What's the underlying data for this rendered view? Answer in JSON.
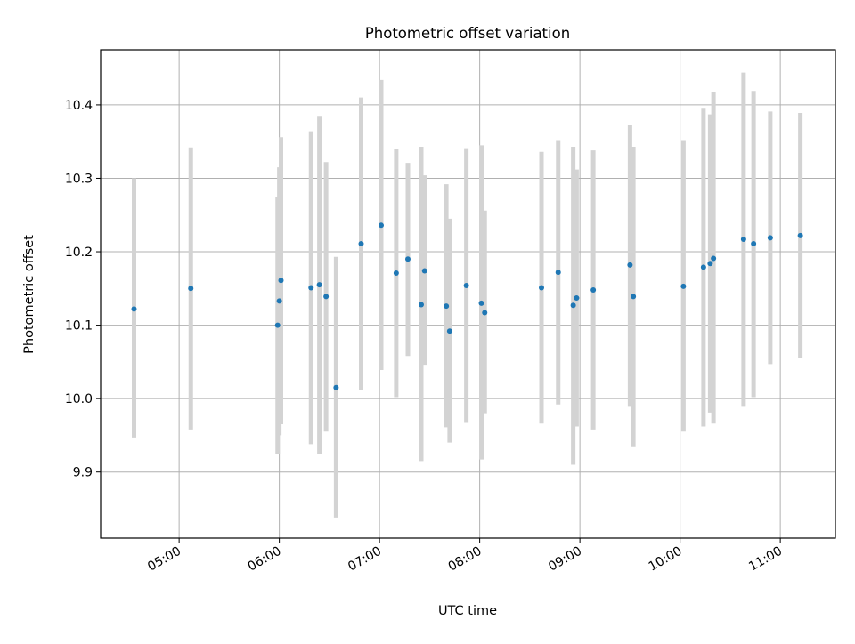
{
  "chart_data": {
    "type": "scatter",
    "title": "Photometric offset variation",
    "xlabel": "UTC time",
    "ylabel": "Photometric offset",
    "xlim": [
      "04:13",
      "11:33"
    ],
    "ylim": [
      9.81,
      10.475
    ],
    "grid": true,
    "colors": {
      "point": "#1f77b4",
      "errorbar": "#d3d3d3",
      "grid": "#b0b0b0",
      "frame": "#000000"
    },
    "x_ticks": [
      {
        "time": "05:00",
        "label": "05:00"
      },
      {
        "time": "06:00",
        "label": "06:00"
      },
      {
        "time": "07:00",
        "label": "07:00"
      },
      {
        "time": "08:00",
        "label": "08:00"
      },
      {
        "time": "09:00",
        "label": "09:00"
      },
      {
        "time": "10:00",
        "label": "10:00"
      },
      {
        "time": "11:00",
        "label": "11:00"
      }
    ],
    "y_ticks": [
      {
        "value": 9.9,
        "label": "9.9"
      },
      {
        "value": 10.0,
        "label": "10.0"
      },
      {
        "value": 10.1,
        "label": "10.1"
      },
      {
        "value": 10.2,
        "label": "10.2"
      },
      {
        "value": 10.3,
        "label": "10.3"
      },
      {
        "value": 10.4,
        "label": "10.4"
      }
    ],
    "points": [
      {
        "time": "04:33",
        "y": 10.122,
        "low": 9.947,
        "high": 10.3
      },
      {
        "time": "05:07",
        "y": 10.15,
        "low": 9.958,
        "high": 10.342
      },
      {
        "time": "05:59",
        "y": 10.1,
        "low": 9.925,
        "high": 10.275
      },
      {
        "time": "06:00",
        "y": 10.133,
        "low": 9.95,
        "high": 10.315
      },
      {
        "time": "06:01",
        "y": 10.161,
        "low": 9.965,
        "high": 10.356
      },
      {
        "time": "06:19",
        "y": 10.151,
        "low": 9.938,
        "high": 10.364
      },
      {
        "time": "06:24",
        "y": 10.155,
        "low": 9.925,
        "high": 10.385
      },
      {
        "time": "06:28",
        "y": 10.139,
        "low": 9.955,
        "high": 10.322
      },
      {
        "time": "06:34",
        "y": 10.015,
        "low": 9.838,
        "high": 10.193
      },
      {
        "time": "06:49",
        "y": 10.211,
        "low": 10.012,
        "high": 10.41
      },
      {
        "time": "07:01",
        "y": 10.236,
        "low": 10.039,
        "high": 10.434
      },
      {
        "time": "07:10",
        "y": 10.171,
        "low": 10.002,
        "high": 10.34
      },
      {
        "time": "07:17",
        "y": 10.19,
        "low": 10.058,
        "high": 10.321
      },
      {
        "time": "07:25",
        "y": 10.128,
        "low": 9.915,
        "high": 10.343
      },
      {
        "time": "07:27",
        "y": 10.174,
        "low": 10.046,
        "high": 10.304
      },
      {
        "time": "07:40",
        "y": 10.126,
        "low": 9.961,
        "high": 10.292
      },
      {
        "time": "07:42",
        "y": 10.092,
        "low": 9.94,
        "high": 10.245
      },
      {
        "time": "07:52",
        "y": 10.154,
        "low": 9.968,
        "high": 10.341
      },
      {
        "time": "08:01",
        "y": 10.13,
        "low": 9.917,
        "high": 10.345
      },
      {
        "time": "08:03",
        "y": 10.117,
        "low": 9.98,
        "high": 10.256
      },
      {
        "time": "08:37",
        "y": 10.151,
        "low": 9.966,
        "high": 10.336
      },
      {
        "time": "08:47",
        "y": 10.172,
        "low": 9.992,
        "high": 10.352
      },
      {
        "time": "08:56",
        "y": 10.127,
        "low": 9.91,
        "high": 10.343
      },
      {
        "time": "08:58",
        "y": 10.137,
        "low": 9.962,
        "high": 10.312
      },
      {
        "time": "09:08",
        "y": 10.148,
        "low": 9.958,
        "high": 10.338
      },
      {
        "time": "09:30",
        "y": 10.182,
        "low": 9.99,
        "high": 10.373
      },
      {
        "time": "09:32",
        "y": 10.139,
        "low": 9.935,
        "high": 10.343
      },
      {
        "time": "10:02",
        "y": 10.153,
        "low": 9.955,
        "high": 10.352
      },
      {
        "time": "10:14",
        "y": 10.179,
        "low": 9.962,
        "high": 10.396
      },
      {
        "time": "10:18",
        "y": 10.184,
        "low": 9.981,
        "high": 10.387
      },
      {
        "time": "10:20",
        "y": 10.191,
        "low": 9.966,
        "high": 10.418
      },
      {
        "time": "10:38",
        "y": 10.217,
        "low": 9.99,
        "high": 10.444
      },
      {
        "time": "10:44",
        "y": 10.211,
        "low": 10.002,
        "high": 10.419
      },
      {
        "time": "10:54",
        "y": 10.219,
        "low": 10.047,
        "high": 10.391
      },
      {
        "time": "11:12",
        "y": 10.222,
        "low": 10.055,
        "high": 10.389
      }
    ]
  }
}
